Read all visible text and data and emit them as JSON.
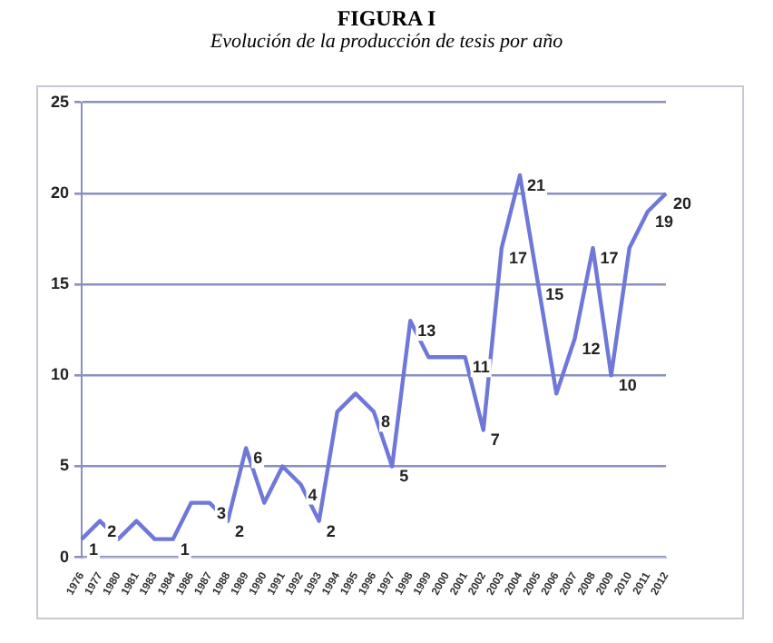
{
  "chart_data": {
    "type": "line",
    "title": "FIGURA I",
    "subtitle": "Evolución de la producción de tesis por año",
    "categories": [
      "1976",
      "1977",
      "1980",
      "1981",
      "1983",
      "1984",
      "1986",
      "1987",
      "1988",
      "1989",
      "1990",
      "1991",
      "1992",
      "1993",
      "1994",
      "1995",
      "1996",
      "1997",
      "1998",
      "1999",
      "2000",
      "2001",
      "2002",
      "2003",
      "2004",
      "2005",
      "2006",
      "2007",
      "2008",
      "2009",
      "2010",
      "2011",
      "2012"
    ],
    "series": [
      {
        "color": "#6f78d8",
        "values": [
          1,
          2,
          1,
          2,
          1,
          1,
          3,
          3,
          2,
          6,
          3,
          5,
          4,
          2,
          8,
          9,
          8,
          5,
          13,
          11,
          11,
          11,
          7,
          17,
          21,
          15,
          9,
          12,
          17,
          10,
          17,
          19,
          20
        ],
        "value_labels": [
          "1",
          "2",
          null,
          null,
          null,
          "1",
          null,
          "3",
          "2",
          "6",
          null,
          null,
          "4",
          "2",
          null,
          null,
          "8",
          "5",
          "13",
          null,
          null,
          "11",
          "7",
          "17",
          "21",
          "15",
          null,
          "12",
          "17",
          "10",
          null,
          "19",
          "20"
        ]
      }
    ],
    "ylim": [
      0,
      25
    ],
    "yticks": [
      0,
      5,
      10,
      15,
      20,
      25
    ],
    "grid": "y",
    "legend": false,
    "marker": "none",
    "line_style": "solid"
  }
}
